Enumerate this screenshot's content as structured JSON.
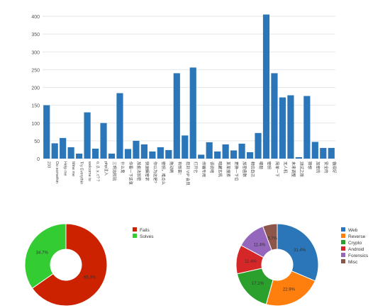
{
  "chart_data": [
    {
      "type": "bar",
      "title": "",
      "xlabel": "",
      "ylabel": "",
      "ylim": [
        0,
        410
      ],
      "yticks": [
        0,
        50,
        100,
        150,
        200,
        250,
        300,
        350,
        400
      ],
      "grid": true,
      "color": "#2a76b8",
      "categories": [
        "233",
        "Do somethin",
        "Help me",
        "Mine me",
        "Try Everythin",
        "welcome to",
        "α, β, γ, ε? ?",
        "php注入",
        "三明治校验",
        "什么鬼",
        "你看一下这张",
        "加盐法加密",
        "快速解密求",
        "你以为这是?",
        "密钥，难点么",
        "拖动刷",
        "有惊喜！",
        "找到 VIP 会员",
        "打开它",
        "传输专用",
        "该说啥",
        "暗藏玄机",
        "某某搜索",
        "更换一下位",
        "加密函数",
        "相信自己",
        "哪题",
        "密钥",
        "简单一下",
        "无人机",
        "未来调整",
        "测试之旅",
        "猜想",
        "加密的",
        "安全的",
        "做得好"
      ],
      "values": [
        150,
        43,
        58,
        32,
        14,
        130,
        28,
        100,
        14,
        184,
        27,
        50,
        40,
        20,
        32,
        24,
        240,
        65,
        256,
        11,
        46,
        20,
        40,
        23,
        42,
        18,
        72,
        405,
        240,
        172,
        178,
        4,
        176,
        47,
        30,
        30
      ]
    },
    {
      "type": "pie",
      "style": "donut",
      "legend_position": "right",
      "labels": [
        "Fails",
        "Solves"
      ],
      "values": [
        65.3,
        34.7
      ],
      "value_labels": [
        "65.3%",
        "34.7%"
      ],
      "colors": [
        "#cc2200",
        "#33cc33"
      ]
    },
    {
      "type": "pie",
      "style": "donut",
      "legend_position": "right",
      "labels": [
        "Web",
        "Reverse",
        "Crypto",
        "Android",
        "Forensics",
        "Misc"
      ],
      "values": [
        31.4,
        22.9,
        17.1,
        11.4,
        11.4,
        5.7
      ],
      "value_labels": [
        "31.4%",
        "22.9%",
        "17.1%",
        "11.4%",
        "11.4%",
        "5.7%"
      ],
      "colors": [
        "#2a76b8",
        "#ff7f0e",
        "#2ca02c",
        "#d62728",
        "#9467bd",
        "#8c564b"
      ]
    }
  ]
}
